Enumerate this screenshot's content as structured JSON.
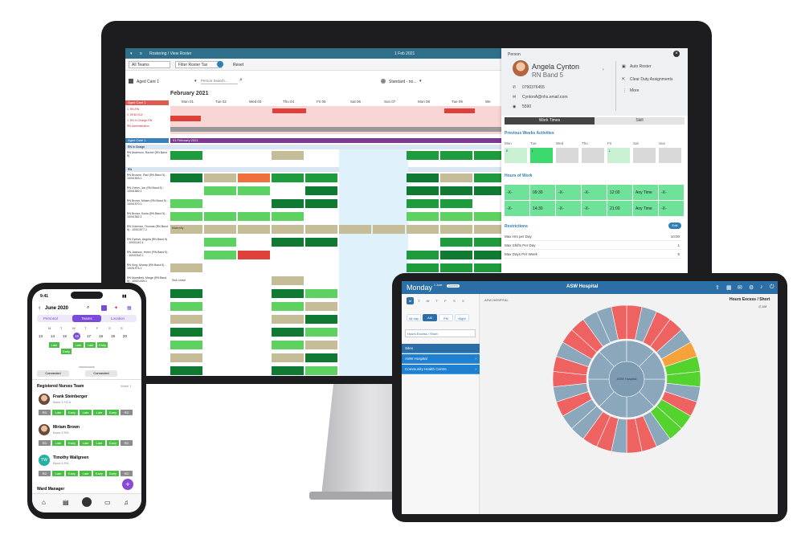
{
  "desktop": {
    "breadcrumb": "Rostering / View Roster",
    "date": "1 Feb 2021",
    "toolbar": {
      "team_select": "All Teams",
      "filter_select": "Filter Roster Tax",
      "reset": "Reset",
      "ward_select": "Aged Care 1",
      "person_search_placeholder": "Person Search...",
      "view_select": "Standard - no..."
    },
    "month_title": "February 2021",
    "days": [
      "Mon 01",
      "Tue 02",
      "Wed 03",
      "Thu 04",
      "Fri 05",
      "Sat 06",
      "Sun 07",
      "Mon 08",
      "Tue 09",
      "We"
    ],
    "groups": [
      {
        "label": "Aged Care 1"
      },
      {
        "label": "Aged Care 1"
      }
    ],
    "summary_rows": [
      "1. RN-RN",
      "2. HEB-HCA",
      "1. RN in Charge-RN",
      "RN Administration"
    ],
    "band_banner": "01 February 2021",
    "section_labels": [
      "RN in Charge",
      "RN"
    ],
    "staff_rows": [
      "RN Anderson, Rachel (RN Band 5)",
      "RN Browne, Paul (RN Band 5) - 10001553-1",
      "RN Green, Jon (RN Band 5) - 10001580-1",
      "RN Brown, Miriam (RN Band 5) - 10001570-1",
      "RN Brown, Sonia (RN Band 5) - 10001582-1",
      "RN Coleman, Thomas (RN Band 5) - 10001577-1",
      "RN Cynton, Angela (RN Band 5) - 10001140-1",
      "RN Jackson, Helen (RN Band 5) - 10001542-1",
      "RN King, Murray (RN Band 5) - 10001576-1",
      "RN Mansfield, Marge (RN Band 5) - 10001449-1"
    ],
    "cell_labels": [
      "Sick Leave",
      "Maternity",
      "L",
      "E",
      "N",
      "M",
      "M/E",
      "Sick Leave"
    ]
  },
  "person_panel": {
    "header_label": "Person",
    "name": "Angela Cynton",
    "role": "RN Band 5",
    "phone": "0790376455",
    "email": "CyntonA@nhs.email.com",
    "id": "5590",
    "actions": [
      "Auto Roster",
      "Clear Duty Assignments",
      "More"
    ],
    "tabs": [
      "Work Times",
      "Skill"
    ],
    "prev_weeks_title": "Previous Weeks Activities",
    "weekdays": [
      "Mon",
      "Tue",
      "Wed",
      "Thu",
      "Fri",
      "Sat",
      "Sun"
    ],
    "week_codes": [
      "E",
      "L",
      "",
      "",
      "L",
      "",
      ""
    ],
    "hours_title": "Hours of Work",
    "hours_rows": [
      [
        "-X-",
        "09:30",
        "-X-",
        "-X-",
        "12:00",
        "Any Time",
        "-X-"
      ],
      [
        "-X-",
        "14:30",
        "-X-",
        "-X-",
        "21:00",
        "Any Time",
        "-X-"
      ]
    ],
    "restrictions_title": "Restrictions",
    "restrictions_button": "Edit",
    "restrictions": [
      {
        "label": "Max Hrs per Day",
        "value": "10:00"
      },
      {
        "label": "Max Shifts Per Day",
        "value": "1"
      },
      {
        "label": "Max Days Per Week",
        "value": "5"
      }
    ]
  },
  "phone": {
    "time": "9:41",
    "month": "June 2020",
    "tabs": [
      "Personal",
      "Teams",
      "Location"
    ],
    "weekdays": [
      "M",
      "T",
      "W",
      "T",
      "F",
      "S",
      "S"
    ],
    "dates": [
      "13",
      "14",
      "15",
      "16",
      "17",
      "18",
      "19",
      "20"
    ],
    "day_chips": [
      "Late",
      "Early",
      "Late",
      "Late",
      "Early"
    ],
    "connected": [
      "Connected",
      "Connected"
    ],
    "team_title": "Registered Nurses Team",
    "week_label": "Week 1",
    "people": [
      {
        "name": "Frank Steinberger",
        "role": "Band 5 HCA",
        "initials": ""
      },
      {
        "name": "Miriam Brown",
        "role": "Band 5 RN",
        "initials": ""
      },
      {
        "name": "Timothy Wallgreen",
        "role": "Band 6 RN",
        "initials": "TW"
      }
    ],
    "chip_rows": [
      [
        "RD",
        "Late",
        "Early",
        "Late",
        "Late",
        "Early",
        "RD"
      ],
      [
        "RD",
        "Late",
        "Early",
        "Late",
        "Late",
        "Early",
        "RD"
      ],
      [
        "RD",
        "Late",
        "Early",
        "Late",
        "Early",
        "Early",
        "RD"
      ]
    ],
    "ward_manager": "Ward Manager",
    "fab": "+"
  },
  "tablet": {
    "day": "Monday",
    "date_small": "1 June",
    "badge": "Current",
    "title": "ASW Hospital",
    "weekdays": [
      "M",
      "T",
      "W",
      "T",
      "F",
      "S",
      "S"
    ],
    "shift_buttons": [
      "All day",
      "AM",
      "PM",
      "Night"
    ],
    "metric_select": "Hours Excess / Short",
    "side_items": [
      "Sites",
      "ASW Hospital",
      "Community Health Centre"
    ],
    "breadcrumb": "ASW HOSPITAL",
    "chart_title": "Hours Excess / Short",
    "chart_legend": "AM",
    "center_label": "ASW Hospital",
    "colors": {
      "grey": "#8aa7bb",
      "red": "#ef6262",
      "green": "#54d22e",
      "orange": "#f6a23a"
    }
  }
}
